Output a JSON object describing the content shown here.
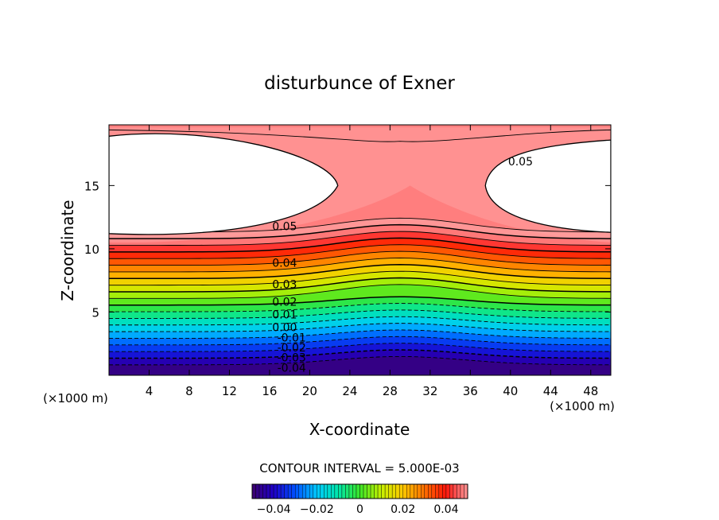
{
  "chart_data": {
    "type": "heatmap",
    "title": "disturbunce of Exner",
    "xlabel": "X-coordinate",
    "ylabel": "Z-coordinate",
    "x_unit": "(×1000 m)",
    "z_unit": "(×1000 m)",
    "xlim": [
      0,
      50
    ],
    "ylim": [
      0,
      19.8
    ],
    "x_ticks": [
      "4",
      "8",
      "12",
      "16",
      "20",
      "24",
      "28",
      "32",
      "36",
      "40",
      "44",
      "48"
    ],
    "y_ticks": [
      "5",
      "10",
      "15"
    ],
    "contour_interval_text": "CONTOUR INTERVAL = 5.000E-03",
    "contour_labels": [
      {
        "text": "0.05",
        "x": 17.5,
        "z": 11.8
      },
      {
        "text": "0.05",
        "x": 41,
        "z": 16.9
      },
      {
        "text": "0.04",
        "x": 17.5,
        "z": 8.9
      },
      {
        "text": "0.03",
        "x": 17.5,
        "z": 7.2
      },
      {
        "text": "0.02",
        "x": 17.5,
        "z": 5.8
      },
      {
        "text": "0.01",
        "x": 17.5,
        "z": 4.8
      },
      {
        "text": "0.00",
        "x": 17.5,
        "z": 3.8
      },
      {
        "text": "-0.01",
        "x": 18.2,
        "z": 3.0
      },
      {
        "text": "-0.02",
        "x": 18.2,
        "z": 2.2
      },
      {
        "text": "-0.03",
        "x": 18.2,
        "z": 1.4
      },
      {
        "text": "-0.04",
        "x": 18.2,
        "z": 0.6
      }
    ],
    "colorbar": {
      "range": [
        -0.05,
        0.05
      ],
      "tick_labels": [
        "-0.04",
        "-0.02",
        "0",
        "0.02",
        "0.04"
      ],
      "tick_values": [
        -0.04,
        -0.02,
        0,
        0.02,
        0.04
      ]
    },
    "notes_undefined_region": "white areas above 0.05 contour are undefined/unfilled"
  }
}
